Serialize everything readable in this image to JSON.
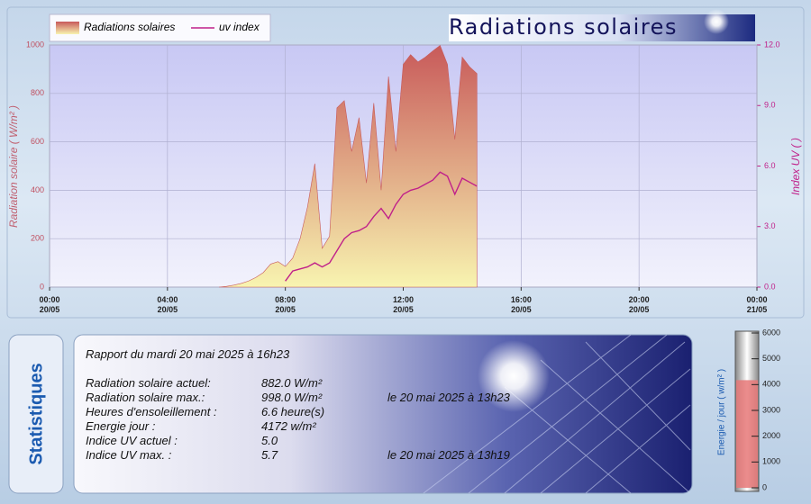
{
  "chart_data": [
    {
      "type": "area",
      "title": "Radiations solaires",
      "x": [
        5.75,
        6,
        6.25,
        6.5,
        6.75,
        7,
        7.25,
        7.5,
        7.75,
        8,
        8.25,
        8.5,
        8.75,
        9,
        9.25,
        9.5,
        9.75,
        10,
        10.25,
        10.5,
        10.75,
        11,
        11.25,
        11.5,
        11.75,
        12,
        12.25,
        12.5,
        12.75,
        13,
        13.25,
        13.5,
        13.75,
        14,
        14.25,
        14.5
      ],
      "series": [
        {
          "name": "Radiations solaires",
          "color": "#c85a5a",
          "values": [
            0,
            3,
            8,
            15,
            25,
            40,
            60,
            95,
            105,
            85,
            120,
            200,
            330,
            510,
            160,
            210,
            740,
            770,
            560,
            700,
            430,
            760,
            400,
            870,
            560,
            920,
            960,
            930,
            950,
            975,
            998,
            920,
            610,
            950,
            910,
            882
          ]
        },
        {
          "name": "uv index",
          "color": "#c0208a",
          "axis": "y2",
          "values": [
            null,
            null,
            null,
            null,
            null,
            null,
            null,
            null,
            null,
            0.3,
            0.8,
            0.9,
            1.0,
            1.2,
            1.0,
            1.2,
            1.8,
            2.4,
            2.7,
            2.8,
            3.0,
            3.5,
            3.9,
            3.4,
            4.1,
            4.6,
            4.8,
            4.9,
            5.1,
            5.3,
            5.7,
            5.5,
            4.6,
            5.4,
            5.2,
            5.0
          ]
        }
      ],
      "ylabel": "Radiation solaire ( W/m² )",
      "y2label": "Index UV ( )",
      "xlim": [
        0,
        24
      ],
      "xticks": [
        {
          "value": 0,
          "label": "00:00\n20/05"
        },
        {
          "value": 4,
          "label": "04:00\n20/05"
        },
        {
          "value": 8,
          "label": "08:00\n20/05"
        },
        {
          "value": 12,
          "label": "12:00\n20/05"
        },
        {
          "value": 16,
          "label": "16:00\n20/05"
        },
        {
          "value": 20,
          "label": "20:00\n20/05"
        },
        {
          "value": 24,
          "label": "00:00\n21/05"
        }
      ],
      "ylim": [
        0,
        1000
      ],
      "yticks": [
        0,
        200,
        400,
        600,
        800,
        1000
      ],
      "y2lim": [
        0,
        12
      ],
      "y2ticks": [
        {
          "value": 0,
          "label": "0.0"
        },
        {
          "value": 3,
          "label": "3.0"
        },
        {
          "value": 6,
          "label": "6.0"
        },
        {
          "value": 9,
          "label": "9.0"
        },
        {
          "value": 12,
          "label": "12.0"
        }
      ],
      "grid": true,
      "legend": "top-left"
    },
    {
      "type": "gauge",
      "ylabel": "Energie / jour ( w/m² )",
      "value": 4172,
      "color": "#e87878",
      "ylim": [
        0,
        6000
      ],
      "yticks": [
        0,
        1000,
        2000,
        3000,
        4000,
        5000,
        6000
      ]
    }
  ],
  "statistics": {
    "title": "Statistiques",
    "report": "Rapport du mardi 20 mai 2025 à 16h23",
    "rows": [
      {
        "label": "Radiation solaire actuel:",
        "value": "882.0 W/m²"
      },
      {
        "label": "Radiation solaire max.:",
        "value": "998.0 W/m²",
        "date": "le 20 mai 2025 à 13h23"
      },
      {
        "label": "Heures d'ensoleillement :",
        "value": "6.6 heure(s)"
      },
      {
        "label": "Energie jour :",
        "value": "4172 w/m²"
      },
      {
        "label": "Indice UV actuel :",
        "value": "5.0"
      },
      {
        "label": "Indice UV max. :",
        "value": "5.7",
        "date": "le 20 mai 2025 à 13h19"
      }
    ]
  }
}
